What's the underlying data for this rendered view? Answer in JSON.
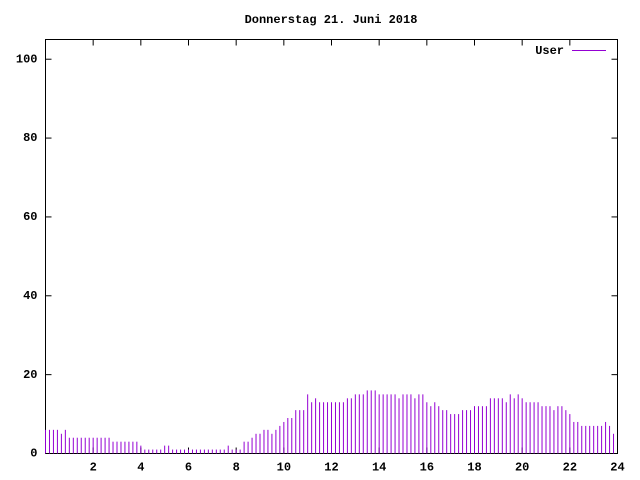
{
  "chart_data": {
    "type": "impulses",
    "title": "Donnerstag 21. Juni 2018",
    "xlim": [
      0,
      24
    ],
    "xticks": [
      2,
      4,
      6,
      8,
      10,
      12,
      14,
      16,
      18,
      20,
      22,
      24
    ],
    "ylim": [
      0,
      105
    ],
    "yticks": [
      0,
      20,
      40,
      60,
      80,
      100
    ],
    "legend": "top-right",
    "x": [
      0,
      0.167,
      0.333,
      0.5,
      0.667,
      0.833,
      1,
      1.167,
      1.333,
      1.5,
      1.667,
      1.833,
      2,
      2.167,
      2.333,
      2.5,
      2.667,
      2.833,
      3,
      3.167,
      3.333,
      3.5,
      3.667,
      3.833,
      4,
      4.167,
      4.333,
      4.5,
      4.667,
      4.833,
      5,
      5.167,
      5.333,
      5.5,
      5.667,
      5.833,
      6,
      6.167,
      6.333,
      6.5,
      6.667,
      6.833,
      7,
      7.167,
      7.333,
      7.5,
      7.667,
      7.833,
      8,
      8.167,
      8.333,
      8.5,
      8.667,
      8.833,
      9,
      9.167,
      9.333,
      9.5,
      9.667,
      9.833,
      10,
      10.167,
      10.333,
      10.5,
      10.667,
      10.833,
      11,
      11.167,
      11.333,
      11.5,
      11.667,
      11.833,
      12,
      12.167,
      12.333,
      12.5,
      12.667,
      12.833,
      13,
      13.167,
      13.333,
      13.5,
      13.667,
      13.833,
      14,
      14.167,
      14.333,
      14.5,
      14.667,
      14.833,
      15,
      15.167,
      15.333,
      15.5,
      15.667,
      15.833,
      16,
      16.167,
      16.333,
      16.5,
      16.667,
      16.833,
      17,
      17.167,
      17.333,
      17.5,
      17.667,
      17.833,
      18,
      18.167,
      18.333,
      18.5,
      18.667,
      18.833,
      19,
      19.167,
      19.333,
      19.5,
      19.667,
      19.833,
      20,
      20.167,
      20.333,
      20.5,
      20.667,
      20.833,
      21,
      21.167,
      21.333,
      21.5,
      21.667,
      21.833,
      22,
      22.167,
      22.333,
      22.5,
      22.667,
      22.833,
      23,
      23.167,
      23.333,
      23.5,
      23.667,
      23.833
    ],
    "series": [
      {
        "name": "User",
        "color": "#9400d3",
        "values": [
          6,
          6,
          6,
          6,
          5,
          6,
          4,
          4,
          4,
          4,
          4,
          4,
          4,
          4,
          4,
          4,
          4,
          3,
          3,
          3,
          3,
          3,
          3,
          3,
          2,
          1,
          1,
          1,
          1,
          1,
          2,
          2,
          1,
          1,
          1,
          1,
          1,
          1,
          1,
          1,
          1,
          1,
          1,
          1,
          1,
          1,
          2,
          1,
          1,
          1,
          3,
          3,
          4,
          5,
          5,
          6,
          6,
          5,
          6,
          7,
          8,
          9,
          9,
          11,
          11,
          11,
          15,
          13,
          14,
          13,
          13,
          13,
          13,
          13,
          13,
          13,
          14,
          14,
          15,
          15,
          15,
          16,
          16,
          16,
          15,
          15,
          15,
          15,
          15,
          14,
          15,
          15,
          15,
          14,
          15,
          15,
          13,
          12,
          13,
          12,
          11,
          11,
          10,
          10,
          10,
          11,
          11,
          11,
          12,
          12,
          12,
          12,
          14,
          14,
          14,
          14,
          13,
          15,
          14,
          15,
          14,
          13,
          13,
          13,
          13,
          12,
          12,
          12,
          11,
          12,
          12,
          11,
          10,
          8,
          8,
          7,
          7,
          7,
          7,
          7,
          7,
          8,
          7,
          5
        ]
      }
    ]
  }
}
